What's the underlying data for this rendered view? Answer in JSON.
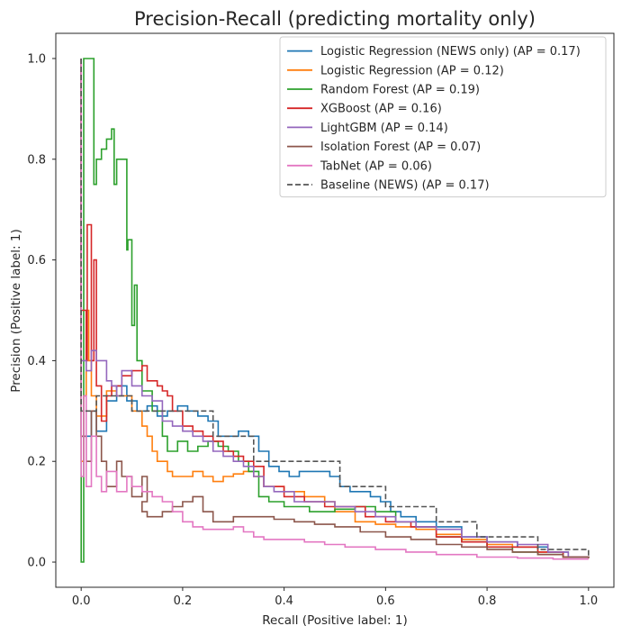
{
  "chart_data": {
    "type": "line",
    "title": "Precision-Recall (predicting mortality only)",
    "xlabel": "Recall (Positive label: 1)",
    "ylabel": "Precision (Positive label: 1)",
    "xlim": [
      -0.05,
      1.05
    ],
    "ylim": [
      -0.05,
      1.05
    ],
    "xticks": [
      "0.0",
      "0.2",
      "0.4",
      "0.6",
      "0.8",
      "1.0"
    ],
    "yticks": [
      "0.0",
      "0.2",
      "0.4",
      "0.6",
      "0.8",
      "1.0"
    ],
    "grid": false,
    "legend_position": "top-right",
    "series": [
      {
        "name": "Logistic Regression (NEWS only) (AP = 0.17)",
        "color": "#1f77b4",
        "dash": "solid",
        "points": [
          [
            0,
            1.0
          ],
          [
            0,
            0.25
          ],
          [
            0.01,
            0.25
          ],
          [
            0.02,
            0.3
          ],
          [
            0.03,
            0.26
          ],
          [
            0.05,
            0.32
          ],
          [
            0.07,
            0.35
          ],
          [
            0.09,
            0.32
          ],
          [
            0.11,
            0.3
          ],
          [
            0.13,
            0.31
          ],
          [
            0.15,
            0.29
          ],
          [
            0.17,
            0.3
          ],
          [
            0.19,
            0.31
          ],
          [
            0.21,
            0.3
          ],
          [
            0.23,
            0.29
          ],
          [
            0.25,
            0.28
          ],
          [
            0.27,
            0.25
          ],
          [
            0.29,
            0.25
          ],
          [
            0.31,
            0.26
          ],
          [
            0.33,
            0.25
          ],
          [
            0.35,
            0.22
          ],
          [
            0.37,
            0.19
          ],
          [
            0.39,
            0.18
          ],
          [
            0.41,
            0.17
          ],
          [
            0.43,
            0.18
          ],
          [
            0.45,
            0.18
          ],
          [
            0.47,
            0.18
          ],
          [
            0.49,
            0.17
          ],
          [
            0.51,
            0.15
          ],
          [
            0.53,
            0.14
          ],
          [
            0.55,
            0.14
          ],
          [
            0.57,
            0.13
          ],
          [
            0.59,
            0.12
          ],
          [
            0.61,
            0.1
          ],
          [
            0.63,
            0.09
          ],
          [
            0.66,
            0.08
          ],
          [
            0.7,
            0.07
          ],
          [
            0.75,
            0.05
          ],
          [
            0.8,
            0.04
          ],
          [
            0.86,
            0.03
          ],
          [
            0.92,
            0.02
          ],
          [
            0.96,
            0.01
          ],
          [
            1.0,
            0.008
          ]
        ]
      },
      {
        "name": "Logistic Regression (AP = 0.12)",
        "color": "#ff7f0e",
        "dash": "solid",
        "points": [
          [
            0,
            1.0
          ],
          [
            0,
            0.2
          ],
          [
            0.005,
            0.33
          ],
          [
            0.01,
            0.5
          ],
          [
            0.015,
            0.4
          ],
          [
            0.02,
            0.33
          ],
          [
            0.03,
            0.29
          ],
          [
            0.05,
            0.34
          ],
          [
            0.07,
            0.33
          ],
          [
            0.09,
            0.33
          ],
          [
            0.1,
            0.3
          ],
          [
            0.12,
            0.27
          ],
          [
            0.13,
            0.25
          ],
          [
            0.14,
            0.22
          ],
          [
            0.15,
            0.2
          ],
          [
            0.17,
            0.18
          ],
          [
            0.18,
            0.17
          ],
          [
            0.2,
            0.17
          ],
          [
            0.22,
            0.18
          ],
          [
            0.24,
            0.17
          ],
          [
            0.26,
            0.16
          ],
          [
            0.28,
            0.17
          ],
          [
            0.3,
            0.175
          ],
          [
            0.32,
            0.18
          ],
          [
            0.34,
            0.17
          ],
          [
            0.36,
            0.15
          ],
          [
            0.4,
            0.14
          ],
          [
            0.44,
            0.13
          ],
          [
            0.48,
            0.12
          ],
          [
            0.5,
            0.1
          ],
          [
            0.54,
            0.08
          ],
          [
            0.58,
            0.075
          ],
          [
            0.62,
            0.07
          ],
          [
            0.66,
            0.065
          ],
          [
            0.7,
            0.055
          ],
          [
            0.75,
            0.045
          ],
          [
            0.8,
            0.035
          ],
          [
            0.85,
            0.03
          ],
          [
            0.9,
            0.02
          ],
          [
            0.95,
            0.01
          ],
          [
            1.0,
            0.008
          ]
        ]
      },
      {
        "name": "Random Forest (AP = 0.19)",
        "color": "#2ca02c",
        "dash": "solid",
        "points": [
          [
            0,
            1.0
          ],
          [
            0,
            0.0
          ],
          [
            0.005,
            1.0
          ],
          [
            0.02,
            1.0
          ],
          [
            0.025,
            0.75
          ],
          [
            0.03,
            0.8
          ],
          [
            0.04,
            0.82
          ],
          [
            0.05,
            0.84
          ],
          [
            0.06,
            0.86
          ],
          [
            0.065,
            0.75
          ],
          [
            0.07,
            0.8
          ],
          [
            0.08,
            0.8
          ],
          [
            0.09,
            0.62
          ],
          [
            0.092,
            0.64
          ],
          [
            0.1,
            0.47
          ],
          [
            0.105,
            0.55
          ],
          [
            0.11,
            0.4
          ],
          [
            0.12,
            0.34
          ],
          [
            0.14,
            0.3
          ],
          [
            0.16,
            0.25
          ],
          [
            0.17,
            0.22
          ],
          [
            0.19,
            0.24
          ],
          [
            0.21,
            0.22
          ],
          [
            0.23,
            0.23
          ],
          [
            0.25,
            0.24
          ],
          [
            0.27,
            0.23
          ],
          [
            0.29,
            0.22
          ],
          [
            0.31,
            0.2
          ],
          [
            0.33,
            0.18
          ],
          [
            0.35,
            0.13
          ],
          [
            0.37,
            0.12
          ],
          [
            0.4,
            0.11
          ],
          [
            0.45,
            0.1
          ],
          [
            0.5,
            0.105
          ],
          [
            0.54,
            0.11
          ],
          [
            0.58,
            0.1
          ],
          [
            0.62,
            0.08
          ],
          [
            0.66,
            0.07
          ],
          [
            0.7,
            0.05
          ],
          [
            0.75,
            0.04
          ],
          [
            0.8,
            0.03
          ],
          [
            0.85,
            0.02
          ],
          [
            0.9,
            0.015
          ],
          [
            0.95,
            0.01
          ],
          [
            1.0,
            0.008
          ]
        ]
      },
      {
        "name": "XGBoost (AP = 0.16)",
        "color": "#d62728",
        "dash": "solid",
        "points": [
          [
            0,
            1.0
          ],
          [
            0,
            0.5
          ],
          [
            0.01,
            0.4
          ],
          [
            0.012,
            0.67
          ],
          [
            0.02,
            0.4
          ],
          [
            0.025,
            0.6
          ],
          [
            0.03,
            0.35
          ],
          [
            0.04,
            0.28
          ],
          [
            0.05,
            0.33
          ],
          [
            0.06,
            0.35
          ],
          [
            0.08,
            0.37
          ],
          [
            0.1,
            0.38
          ],
          [
            0.12,
            0.39
          ],
          [
            0.13,
            0.36
          ],
          [
            0.15,
            0.35
          ],
          [
            0.16,
            0.34
          ],
          [
            0.17,
            0.33
          ],
          [
            0.18,
            0.3
          ],
          [
            0.2,
            0.27
          ],
          [
            0.22,
            0.26
          ],
          [
            0.24,
            0.25
          ],
          [
            0.26,
            0.24
          ],
          [
            0.28,
            0.22
          ],
          [
            0.3,
            0.21
          ],
          [
            0.32,
            0.2
          ],
          [
            0.34,
            0.19
          ],
          [
            0.36,
            0.15
          ],
          [
            0.4,
            0.13
          ],
          [
            0.44,
            0.12
          ],
          [
            0.48,
            0.11
          ],
          [
            0.52,
            0.11
          ],
          [
            0.56,
            0.09
          ],
          [
            0.6,
            0.08
          ],
          [
            0.65,
            0.07
          ],
          [
            0.7,
            0.05
          ],
          [
            0.75,
            0.04
          ],
          [
            0.8,
            0.03
          ],
          [
            0.85,
            0.03
          ],
          [
            0.9,
            0.02
          ],
          [
            0.95,
            0.01
          ],
          [
            1.0,
            0.008
          ]
        ]
      },
      {
        "name": "LightGBM (AP = 0.14)",
        "color": "#9467bd",
        "dash": "solid",
        "points": [
          [
            0,
            1.0
          ],
          [
            0,
            0.4
          ],
          [
            0.01,
            0.38
          ],
          [
            0.02,
            0.42
          ],
          [
            0.03,
            0.4
          ],
          [
            0.05,
            0.36
          ],
          [
            0.06,
            0.35
          ],
          [
            0.07,
            0.33
          ],
          [
            0.08,
            0.38
          ],
          [
            0.1,
            0.35
          ],
          [
            0.12,
            0.33
          ],
          [
            0.14,
            0.32
          ],
          [
            0.16,
            0.28
          ],
          [
            0.18,
            0.27
          ],
          [
            0.2,
            0.26
          ],
          [
            0.22,
            0.25
          ],
          [
            0.24,
            0.24
          ],
          [
            0.26,
            0.22
          ],
          [
            0.28,
            0.21
          ],
          [
            0.3,
            0.2
          ],
          [
            0.32,
            0.19
          ],
          [
            0.34,
            0.17
          ],
          [
            0.36,
            0.15
          ],
          [
            0.38,
            0.14
          ],
          [
            0.42,
            0.12
          ],
          [
            0.46,
            0.12
          ],
          [
            0.5,
            0.11
          ],
          [
            0.54,
            0.1
          ],
          [
            0.58,
            0.09
          ],
          [
            0.62,
            0.08
          ],
          [
            0.66,
            0.07
          ],
          [
            0.7,
            0.065
          ],
          [
            0.75,
            0.05
          ],
          [
            0.8,
            0.04
          ],
          [
            0.86,
            0.035
          ],
          [
            0.92,
            0.02
          ],
          [
            0.96,
            0.01
          ],
          [
            1.0,
            0.008
          ]
        ]
      },
      {
        "name": "Isolation Forest (AP = 0.07)",
        "color": "#8c564b",
        "dash": "solid",
        "points": [
          [
            0,
            1.0
          ],
          [
            0,
            0.25
          ],
          [
            0.01,
            0.2
          ],
          [
            0.02,
            0.3
          ],
          [
            0.03,
            0.25
          ],
          [
            0.04,
            0.2
          ],
          [
            0.05,
            0.15
          ],
          [
            0.07,
            0.2
          ],
          [
            0.08,
            0.17
          ],
          [
            0.1,
            0.13
          ],
          [
            0.12,
            0.17
          ],
          [
            0.13,
            0.12
          ],
          [
            0.12,
            0.1
          ],
          [
            0.13,
            0.09
          ],
          [
            0.14,
            0.09
          ],
          [
            0.16,
            0.1
          ],
          [
            0.18,
            0.11
          ],
          [
            0.2,
            0.12
          ],
          [
            0.22,
            0.13
          ],
          [
            0.24,
            0.1
          ],
          [
            0.26,
            0.08
          ],
          [
            0.3,
            0.09
          ],
          [
            0.34,
            0.09
          ],
          [
            0.38,
            0.085
          ],
          [
            0.42,
            0.08
          ],
          [
            0.46,
            0.075
          ],
          [
            0.5,
            0.07
          ],
          [
            0.55,
            0.06
          ],
          [
            0.6,
            0.05
          ],
          [
            0.65,
            0.045
          ],
          [
            0.7,
            0.035
          ],
          [
            0.75,
            0.03
          ],
          [
            0.8,
            0.025
          ],
          [
            0.85,
            0.02
          ],
          [
            0.9,
            0.015
          ],
          [
            0.95,
            0.01
          ],
          [
            1.0,
            0.008
          ]
        ]
      },
      {
        "name": "TabNet (AP = 0.06)",
        "color": "#e377c2",
        "dash": "solid",
        "points": [
          [
            0,
            1.0
          ],
          [
            0,
            0.17
          ],
          [
            0.005,
            0.33
          ],
          [
            0.01,
            0.15
          ],
          [
            0.02,
            0.25
          ],
          [
            0.03,
            0.17
          ],
          [
            0.04,
            0.14
          ],
          [
            0.05,
            0.18
          ],
          [
            0.07,
            0.14
          ],
          [
            0.09,
            0.17
          ],
          [
            0.1,
            0.15
          ],
          [
            0.12,
            0.14
          ],
          [
            0.14,
            0.13
          ],
          [
            0.16,
            0.12
          ],
          [
            0.18,
            0.1
          ],
          [
            0.2,
            0.08
          ],
          [
            0.22,
            0.07
          ],
          [
            0.24,
            0.065
          ],
          [
            0.26,
            0.065
          ],
          [
            0.28,
            0.065
          ],
          [
            0.3,
            0.07
          ],
          [
            0.32,
            0.06
          ],
          [
            0.34,
            0.05
          ],
          [
            0.36,
            0.045
          ],
          [
            0.4,
            0.045
          ],
          [
            0.44,
            0.04
          ],
          [
            0.48,
            0.035
          ],
          [
            0.52,
            0.03
          ],
          [
            0.58,
            0.025
          ],
          [
            0.64,
            0.02
          ],
          [
            0.7,
            0.015
          ],
          [
            0.78,
            0.01
          ],
          [
            0.86,
            0.008
          ],
          [
            0.93,
            0.006
          ],
          [
            1.0,
            0.006
          ]
        ]
      },
      {
        "name": "Baseline (NEWS) (AP = 0.17)",
        "color": "#555555",
        "dash": "dashed",
        "points": [
          [
            0,
            1.0
          ],
          [
            0.0,
            0.3
          ],
          [
            0.03,
            0.33
          ],
          [
            0.1,
            0.3
          ],
          [
            0.26,
            0.25
          ],
          [
            0.34,
            0.2
          ],
          [
            0.51,
            0.15
          ],
          [
            0.6,
            0.11
          ],
          [
            0.7,
            0.08
          ],
          [
            0.78,
            0.05
          ],
          [
            0.9,
            0.025
          ],
          [
            1.0,
            0.008
          ]
        ]
      }
    ]
  }
}
